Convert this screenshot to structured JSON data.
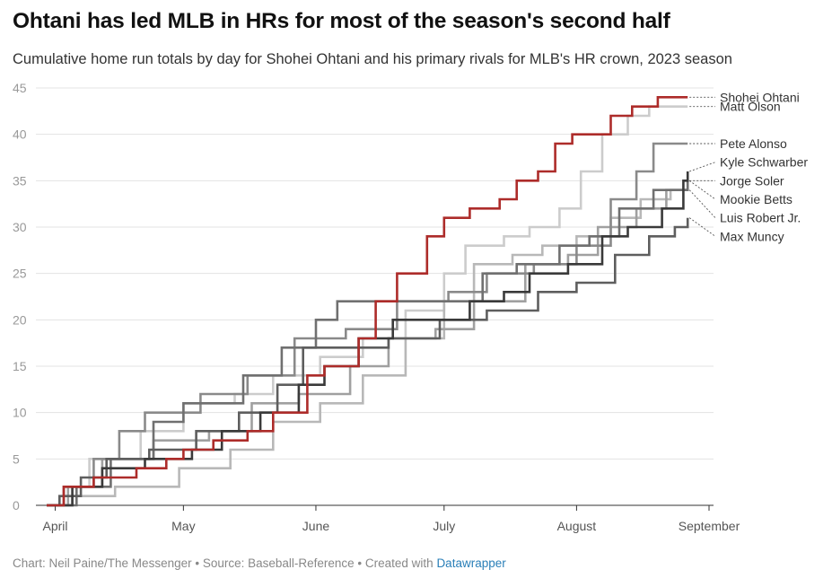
{
  "title": "Ohtani has led MLB in HRs for most of the season's second half",
  "subtitle": "Cumulative home run totals by day for Shohei Ohtani and his primary rivals for MLB's HR crown, 2023 season",
  "footer": {
    "credit": "Chart: Neil Paine/The Messenger • Source: Baseball-Reference • Created with ",
    "tool": "Datawrapper"
  },
  "chart_data": {
    "type": "line",
    "step": true,
    "x_unit": "date",
    "xlim": [
      "2023-03-30",
      "2023-09-01"
    ],
    "ylim": [
      0,
      45
    ],
    "y_ticks": [
      0,
      5,
      10,
      15,
      20,
      25,
      30,
      35,
      40,
      45
    ],
    "x_ticks": [
      {
        "label": "April",
        "date": "2023-04-01"
      },
      {
        "label": "May",
        "date": "2023-05-01"
      },
      {
        "label": "June",
        "date": "2023-06-01"
      },
      {
        "label": "July",
        "date": "2023-07-01"
      },
      {
        "label": "August",
        "date": "2023-08-01"
      },
      {
        "label": "September",
        "date": "2023-09-01"
      }
    ],
    "grid": true,
    "legend": "direct labels at right end",
    "series": [
      {
        "name": "Matt Olson",
        "color": "#cccccc",
        "label_y": 43,
        "points": [
          [
            "2023-03-30",
            0
          ],
          [
            "2023-04-03",
            2
          ],
          [
            "2023-04-09",
            5
          ],
          [
            "2023-04-21",
            8
          ],
          [
            "2023-05-01",
            11
          ],
          [
            "2023-05-13",
            12
          ],
          [
            "2023-05-22",
            14
          ],
          [
            "2023-06-02",
            16
          ],
          [
            "2023-06-12",
            18
          ],
          [
            "2023-06-22",
            21
          ],
          [
            "2023-07-01",
            25
          ],
          [
            "2023-07-06",
            28
          ],
          [
            "2023-07-15",
            29
          ],
          [
            "2023-07-21",
            30
          ],
          [
            "2023-07-28",
            32
          ],
          [
            "2023-08-02",
            36
          ],
          [
            "2023-08-07",
            40
          ],
          [
            "2023-08-13",
            42
          ],
          [
            "2023-08-18",
            43
          ],
          [
            "2023-08-27",
            43
          ]
        ]
      },
      {
        "name": "Luis Robert Jr.",
        "color": "#b8b8b8",
        "label_y": 31,
        "points": [
          [
            "2023-03-30",
            0
          ],
          [
            "2023-04-05",
            1
          ],
          [
            "2023-04-15",
            2
          ],
          [
            "2023-04-30",
            4
          ],
          [
            "2023-05-12",
            6
          ],
          [
            "2023-05-22",
            9
          ],
          [
            "2023-06-02",
            11
          ],
          [
            "2023-06-12",
            14
          ],
          [
            "2023-06-22",
            18
          ],
          [
            "2023-07-01",
            22
          ],
          [
            "2023-07-08",
            26
          ],
          [
            "2023-07-17",
            27
          ],
          [
            "2023-07-24",
            28
          ],
          [
            "2023-08-01",
            29
          ],
          [
            "2023-08-09",
            31
          ],
          [
            "2023-08-16",
            33
          ],
          [
            "2023-08-23",
            34
          ],
          [
            "2023-08-27",
            34
          ]
        ]
      },
      {
        "name": "Mookie Betts",
        "color": "#a0a0a0",
        "label_y": 33,
        "points": [
          [
            "2023-03-30",
            0
          ],
          [
            "2023-04-04",
            2
          ],
          [
            "2023-04-12",
            5
          ],
          [
            "2023-04-24",
            7
          ],
          [
            "2023-05-07",
            8
          ],
          [
            "2023-05-17",
            11
          ],
          [
            "2023-05-28",
            12
          ],
          [
            "2023-06-09",
            15
          ],
          [
            "2023-06-18",
            18
          ],
          [
            "2023-06-29",
            19
          ],
          [
            "2023-07-08",
            22
          ],
          [
            "2023-07-20",
            26
          ],
          [
            "2023-07-30",
            27
          ],
          [
            "2023-08-06",
            30
          ],
          [
            "2023-08-15",
            32
          ],
          [
            "2023-08-22",
            34
          ],
          [
            "2023-08-27",
            35
          ]
        ]
      },
      {
        "name": "Pete Alonso",
        "color": "#8a8a8a",
        "label_y": 39,
        "points": [
          [
            "2023-03-30",
            0
          ],
          [
            "2023-04-03",
            2
          ],
          [
            "2023-04-10",
            5
          ],
          [
            "2023-04-16",
            8
          ],
          [
            "2023-04-22",
            10
          ],
          [
            "2023-05-05",
            12
          ],
          [
            "2023-05-16",
            14
          ],
          [
            "2023-05-27",
            18
          ],
          [
            "2023-06-08",
            19
          ],
          [
            "2023-06-20",
            22
          ],
          [
            "2023-07-02",
            23
          ],
          [
            "2023-07-11",
            25
          ],
          [
            "2023-07-22",
            26
          ],
          [
            "2023-08-01",
            28
          ],
          [
            "2023-08-09",
            33
          ],
          [
            "2023-08-15",
            36
          ],
          [
            "2023-08-19",
            39
          ],
          [
            "2023-08-27",
            39
          ]
        ]
      },
      {
        "name": "Jorge Soler",
        "color": "#707070",
        "label_y": 35,
        "points": [
          [
            "2023-03-30",
            0
          ],
          [
            "2023-04-06",
            2
          ],
          [
            "2023-04-14",
            5
          ],
          [
            "2023-04-24",
            9
          ],
          [
            "2023-05-01",
            11
          ],
          [
            "2023-05-15",
            14
          ],
          [
            "2023-05-24",
            17
          ],
          [
            "2023-06-01",
            20
          ],
          [
            "2023-06-06",
            22
          ],
          [
            "2023-06-16",
            22
          ],
          [
            "2023-06-28",
            22
          ],
          [
            "2023-07-10",
            25
          ],
          [
            "2023-07-18",
            26
          ],
          [
            "2023-07-28",
            28
          ],
          [
            "2023-08-04",
            29
          ],
          [
            "2023-08-11",
            32
          ],
          [
            "2023-08-19",
            34
          ],
          [
            "2023-08-27",
            35
          ]
        ]
      },
      {
        "name": "Max Muncy",
        "color": "#5e5e5e",
        "label_y": 29,
        "points": [
          [
            "2023-03-30",
            0
          ],
          [
            "2023-04-02",
            1
          ],
          [
            "2023-04-07",
            3
          ],
          [
            "2023-04-13",
            5
          ],
          [
            "2023-04-23",
            6
          ],
          [
            "2023-05-04",
            8
          ],
          [
            "2023-05-14",
            10
          ],
          [
            "2023-05-23",
            13
          ],
          [
            "2023-05-29",
            17
          ],
          [
            "2023-06-08",
            17
          ],
          [
            "2023-06-18",
            18
          ],
          [
            "2023-06-30",
            20
          ],
          [
            "2023-07-11",
            21
          ],
          [
            "2023-07-23",
            23
          ],
          [
            "2023-08-01",
            24
          ],
          [
            "2023-08-10",
            27
          ],
          [
            "2023-08-18",
            29
          ],
          [
            "2023-08-24",
            30
          ],
          [
            "2023-08-27",
            31
          ]
        ]
      },
      {
        "name": "Kyle Schwarber",
        "color": "#3a3a3a",
        "label_y": 37,
        "points": [
          [
            "2023-03-30",
            0
          ],
          [
            "2023-04-05",
            2
          ],
          [
            "2023-04-12",
            4
          ],
          [
            "2023-04-22",
            5
          ],
          [
            "2023-05-03",
            6
          ],
          [
            "2023-05-10",
            8
          ],
          [
            "2023-05-19",
            10
          ],
          [
            "2023-05-28",
            13
          ],
          [
            "2023-06-03",
            15
          ],
          [
            "2023-06-11",
            18
          ],
          [
            "2023-06-19",
            20
          ],
          [
            "2023-06-30",
            20
          ],
          [
            "2023-07-07",
            22
          ],
          [
            "2023-07-15",
            23
          ],
          [
            "2023-07-21",
            25
          ],
          [
            "2023-07-30",
            26
          ],
          [
            "2023-08-07",
            29
          ],
          [
            "2023-08-13",
            30
          ],
          [
            "2023-08-21",
            32
          ],
          [
            "2023-08-26",
            35
          ],
          [
            "2023-08-27",
            36
          ]
        ]
      },
      {
        "name": "Shohei Ohtani",
        "color": "#ad2c2a",
        "label_y": 44,
        "points": [
          [
            "2023-03-30",
            0
          ],
          [
            "2023-04-03",
            2
          ],
          [
            "2023-04-10",
            3
          ],
          [
            "2023-04-20",
            4
          ],
          [
            "2023-04-27",
            5
          ],
          [
            "2023-05-01",
            6
          ],
          [
            "2023-05-08",
            7
          ],
          [
            "2023-05-16",
            8
          ],
          [
            "2023-05-22",
            10
          ],
          [
            "2023-05-30",
            14
          ],
          [
            "2023-06-03",
            15
          ],
          [
            "2023-06-11",
            18
          ],
          [
            "2023-06-15",
            22
          ],
          [
            "2023-06-20",
            25
          ],
          [
            "2023-06-27",
            29
          ],
          [
            "2023-07-01",
            31
          ],
          [
            "2023-07-07",
            32
          ],
          [
            "2023-07-14",
            33
          ],
          [
            "2023-07-18",
            35
          ],
          [
            "2023-07-23",
            36
          ],
          [
            "2023-07-27",
            39
          ],
          [
            "2023-07-31",
            40
          ],
          [
            "2023-08-09",
            42
          ],
          [
            "2023-08-14",
            43
          ],
          [
            "2023-08-20",
            44
          ],
          [
            "2023-08-27",
            44
          ]
        ]
      }
    ]
  }
}
